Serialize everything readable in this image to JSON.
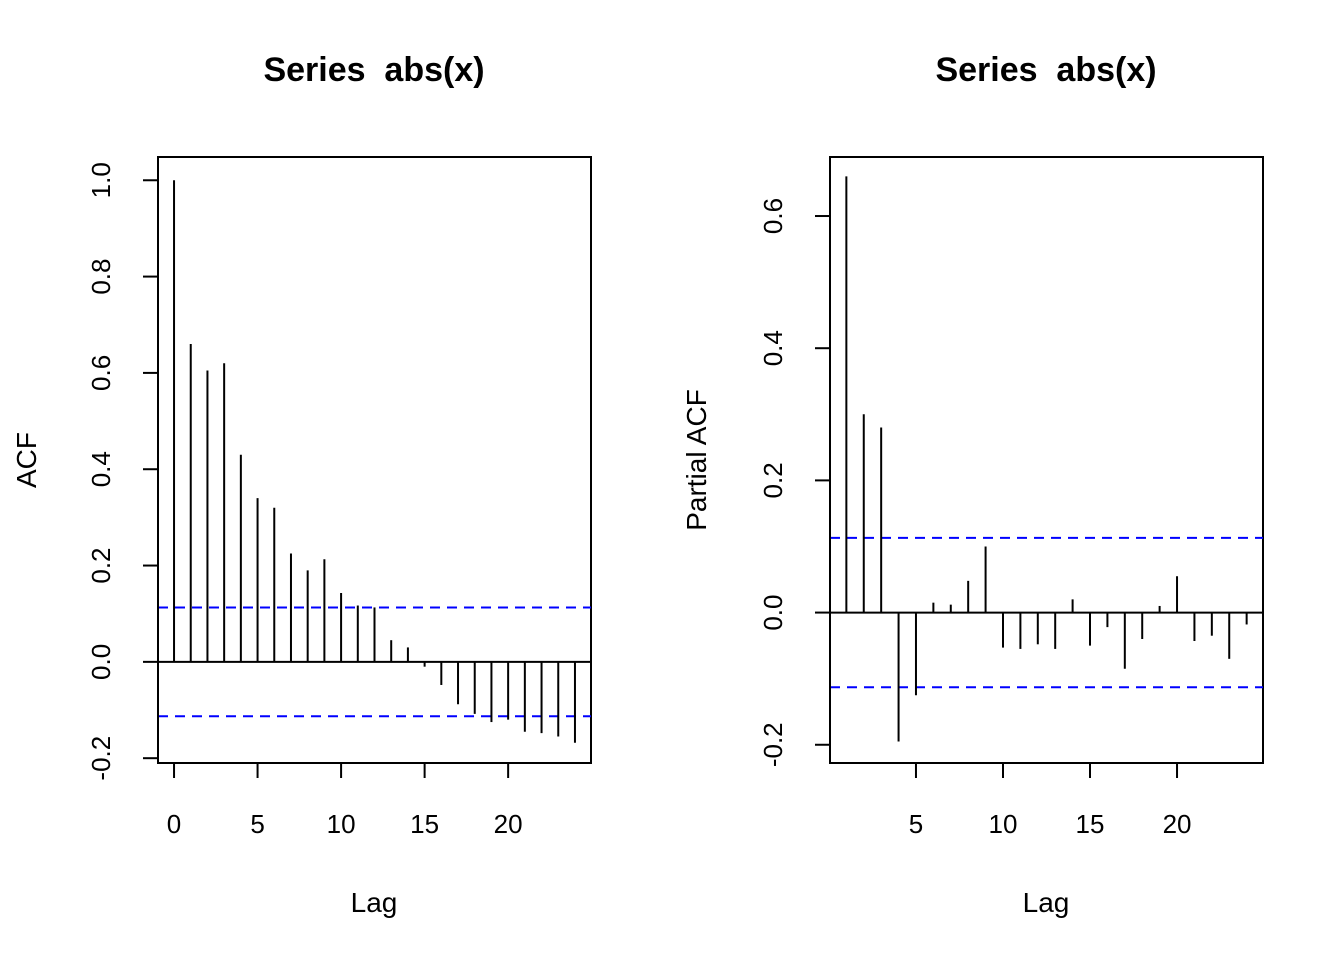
{
  "chart_data": [
    {
      "type": "bar",
      "title": "Series  abs(x)",
      "xlabel": "Lag",
      "ylabel": "ACF",
      "xlim": [
        -0.96,
        24.96
      ],
      "ylim": [
        -0.21,
        1.0483
      ],
      "x_ticks": [
        0,
        5,
        10,
        15,
        20
      ],
      "y_ticks": [
        -0.2,
        0.0,
        0.2,
        0.4,
        0.6,
        0.8,
        1.0
      ],
      "x_tick_labels": [
        "0",
        "5",
        "10",
        "15",
        "20"
      ],
      "y_tick_labels": [
        "-0.2",
        "0.0",
        "0.2",
        "0.4",
        "0.6",
        "0.8",
        "1.0"
      ],
      "ci": 0.113,
      "ci_color": "#0000ff",
      "grid": false,
      "x": [
        0,
        1,
        2,
        3,
        4,
        5,
        6,
        7,
        8,
        9,
        10,
        11,
        12,
        13,
        14,
        15,
        16,
        17,
        18,
        19,
        20,
        21,
        22,
        23,
        24
      ],
      "values": [
        1.0,
        0.66,
        0.605,
        0.62,
        0.43,
        0.34,
        0.32,
        0.225,
        0.19,
        0.213,
        0.143,
        0.117,
        0.113,
        0.045,
        0.03,
        -0.01,
        -0.048,
        -0.088,
        -0.108,
        -0.125,
        -0.12,
        -0.145,
        -0.148,
        -0.155,
        -0.168
      ]
    },
    {
      "type": "bar",
      "title": "Series  abs(x)",
      "xlabel": "Lag",
      "ylabel": "Partial ACF",
      "xlim": [
        0.06,
        24.94
      ],
      "ylim": [
        -0.2276,
        0.6893
      ],
      "x_ticks": [
        5,
        10,
        15,
        20
      ],
      "y_ticks": [
        -0.2,
        0.0,
        0.2,
        0.4,
        0.6
      ],
      "x_tick_labels": [
        "5",
        "10",
        "15",
        "20"
      ],
      "y_tick_labels": [
        "-0.2",
        "0.0",
        "0.2",
        "0.4",
        "0.6"
      ],
      "ci": 0.113,
      "ci_color": "#0000ff",
      "grid": false,
      "x": [
        1,
        2,
        3,
        4,
        5,
        6,
        7,
        8,
        9,
        10,
        11,
        12,
        13,
        14,
        15,
        16,
        17,
        18,
        19,
        20,
        21,
        22,
        23,
        24
      ],
      "values": [
        0.66,
        0.3,
        0.28,
        -0.195,
        -0.125,
        0.015,
        0.012,
        0.048,
        0.1,
        -0.053,
        -0.055,
        -0.048,
        -0.055,
        0.02,
        -0.05,
        -0.022,
        -0.085,
        -0.04,
        0.01,
        0.055,
        -0.043,
        -0.035,
        -0.07,
        -0.018
      ]
    }
  ]
}
